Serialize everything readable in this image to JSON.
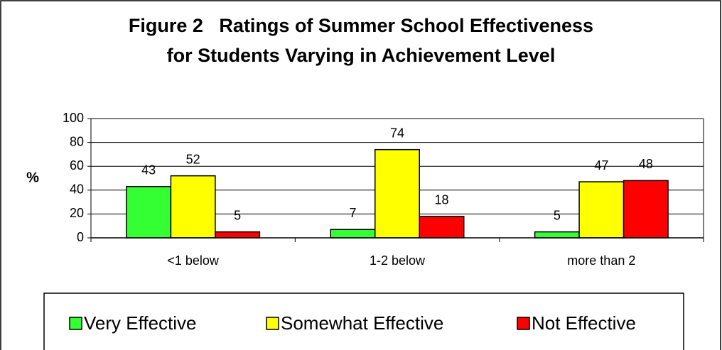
{
  "chart_data": {
    "type": "bar",
    "title": [
      "Figure 2   Ratings of Summer School Effectiveness",
      "for Students Varying in Achievement Level"
    ],
    "y_label": "%",
    "categories": [
      "<1 below",
      "1-2 below",
      "more than 2"
    ],
    "series": [
      {
        "name": "Very Effective",
        "color": "#33ff33",
        "values": [
          43,
          7,
          5
        ]
      },
      {
        "name": "Somewhat Effective",
        "color": "#ffff00",
        "values": [
          52,
          74,
          47
        ]
      },
      {
        "name": "Not Effective",
        "color": "#ff0000",
        "values": [
          5,
          18,
          48
        ]
      }
    ],
    "ylim": [
      0,
      100
    ],
    "yticks": [
      0,
      20,
      40,
      60,
      80,
      100
    ],
    "grid": true,
    "legend": "bottom"
  }
}
